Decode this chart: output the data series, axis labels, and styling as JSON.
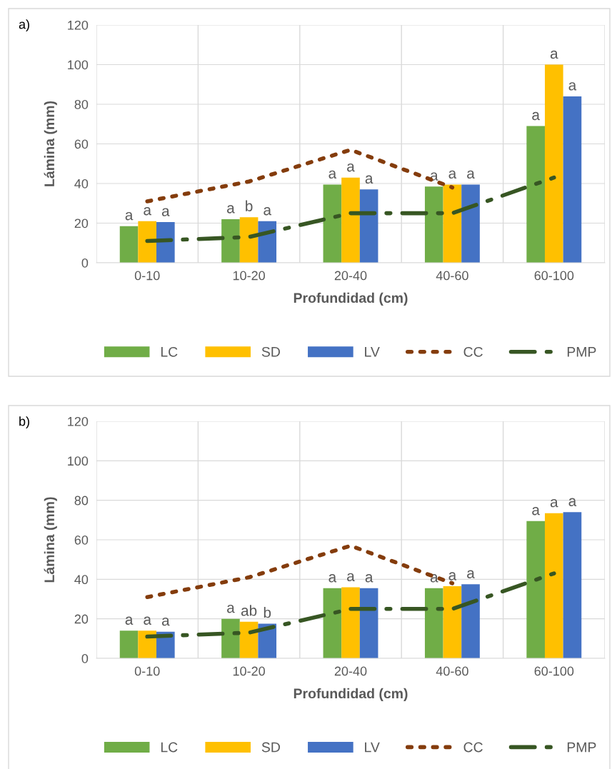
{
  "chart_data": [
    {
      "type": "bar",
      "annotations": [
        "a)"
      ],
      "xlabel": "Profundidad (cm)",
      "ylabel": "Lámina (mm)",
      "categories": [
        "0-10",
        "10-20",
        "20-40",
        "40-60",
        "60-100"
      ],
      "ylim": [
        0,
        120
      ],
      "yticks": [
        0,
        20,
        40,
        60,
        80,
        100,
        120
      ],
      "grid": true,
      "legend": "bottom",
      "series": [
        {
          "name": "LC",
          "color": "#70ad47",
          "values": [
            18.5,
            22,
            39.5,
            38.5,
            69
          ],
          "value_labels": [
            "a",
            "a",
            "a",
            "a",
            "a"
          ]
        },
        {
          "name": "SD",
          "color": "#ffc000",
          "values": [
            21,
            23,
            43,
            39.5,
            100
          ],
          "value_labels": [
            "a",
            "b",
            "a",
            "a",
            "a"
          ]
        },
        {
          "name": "LV",
          "color": "#4472c4",
          "values": [
            20.5,
            21,
            37,
            39.5,
            84
          ],
          "value_labels": [
            "a",
            "a",
            "a",
            "a",
            "a"
          ]
        },
        {
          "name": "CC",
          "type": "line",
          "color": "#843c0c",
          "line_style": "dotted",
          "values": [
            31,
            41,
            57,
            38,
            null
          ]
        },
        {
          "name": "PMP",
          "type": "line",
          "color": "#375623",
          "line_style": "dashed",
          "values": [
            11,
            13,
            25,
            25,
            43
          ]
        }
      ]
    },
    {
      "type": "bar",
      "annotations": [
        "b)"
      ],
      "xlabel": "Profundidad (cm)",
      "ylabel": "Lámina (mm)",
      "categories": [
        "0-10",
        "10-20",
        "20-40",
        "40-60",
        "60-100"
      ],
      "ylim": [
        0,
        120
      ],
      "yticks": [
        0,
        20,
        40,
        60,
        80,
        100,
        120
      ],
      "grid": true,
      "legend": "bottom",
      "series": [
        {
          "name": "LC",
          "color": "#70ad47",
          "values": [
            14,
            20,
            35.5,
            35.5,
            69.5
          ],
          "value_labels": [
            "a",
            "a",
            "a",
            "a",
            "a"
          ]
        },
        {
          "name": "SD",
          "color": "#ffc000",
          "values": [
            14,
            18.5,
            36,
            36.5,
            73.5
          ],
          "value_labels": [
            "a",
            "ab",
            "a",
            "a",
            "a"
          ]
        },
        {
          "name": "LV",
          "color": "#4472c4",
          "values": [
            13.5,
            17.5,
            35.5,
            37.5,
            74
          ],
          "value_labels": [
            "a",
            "b",
            "a",
            "a",
            "a"
          ]
        },
        {
          "name": "CC",
          "type": "line",
          "color": "#843c0c",
          "line_style": "dotted",
          "values": [
            31,
            41,
            57,
            38,
            null
          ]
        },
        {
          "name": "PMP",
          "type": "line",
          "color": "#375623",
          "line_style": "dashed",
          "values": [
            11,
            13,
            25,
            25,
            43
          ]
        }
      ]
    }
  ]
}
